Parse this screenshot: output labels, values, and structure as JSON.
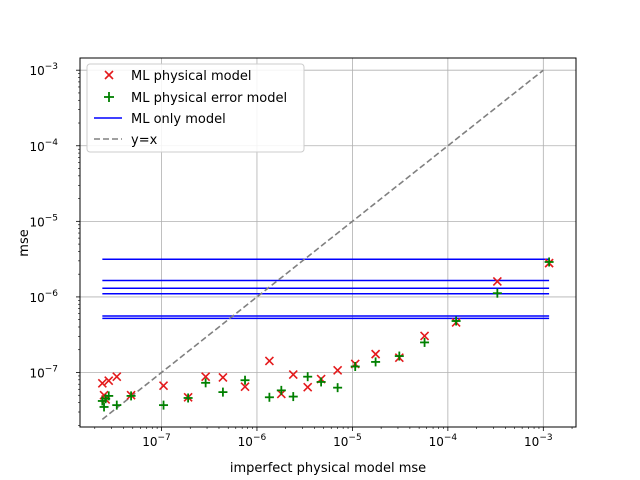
{
  "chart_data": {
    "type": "scatter",
    "title": "",
    "xlabel": "imperfect physical model mse",
    "ylabel": "mse",
    "xscale": "log",
    "yscale": "log",
    "xlim": [
      1.4e-08,
      0.0022
    ],
    "ylim": [
      1.9e-08,
      0.00145
    ],
    "grid": true,
    "legend_position": "top-left",
    "x_ticks": [
      {
        "value": 1e-07,
        "base": "10",
        "exp": "−7"
      },
      {
        "value": 1e-06,
        "base": "10",
        "exp": "−6"
      },
      {
        "value": 1e-05,
        "base": "10",
        "exp": "−5"
      },
      {
        "value": 0.0001,
        "base": "10",
        "exp": "−4"
      },
      {
        "value": 0.001,
        "base": "10",
        "exp": "−3"
      }
    ],
    "y_ticks": [
      {
        "value": 1e-07,
        "base": "10",
        "exp": "−7"
      },
      {
        "value": 1e-06,
        "base": "10",
        "exp": "−6"
      },
      {
        "value": 1e-05,
        "base": "10",
        "exp": "−5"
      },
      {
        "value": 0.0001,
        "base": "10",
        "exp": "−4"
      },
      {
        "value": 0.001,
        "base": "10",
        "exp": "−3"
      }
    ],
    "series": [
      {
        "name": "ML physical model",
        "marker": "x",
        "color": "#e41a1c",
        "points": [
          [
            2.4e-08,
            7.2e-08
          ],
          [
            2.5e-08,
            5e-08
          ],
          [
            2.6e-08,
            4.4e-08
          ],
          [
            2.8e-08,
            7.8e-08
          ],
          [
            3.4e-08,
            8.8e-08
          ],
          [
            4.8e-08,
            5e-08
          ],
          [
            1.05e-07,
            6.7e-08
          ],
          [
            1.9e-07,
            4.7e-08
          ],
          [
            2.9e-07,
            8.8e-08
          ],
          [
            4.4e-07,
            8.6e-08
          ],
          [
            7.5e-07,
            6.5e-08
          ],
          [
            1.35e-06,
            1.42e-07
          ],
          [
            1.8e-06,
            5.2e-08
          ],
          [
            2.4e-06,
            9.4e-08
          ],
          [
            3.4e-06,
            6.4e-08
          ],
          [
            4.7e-06,
            8.2e-08
          ],
          [
            7e-06,
            1.07e-07
          ],
          [
            1.07e-05,
            1.3e-07
          ],
          [
            1.75e-05,
            1.75e-07
          ],
          [
            3.1e-05,
            1.57e-07
          ],
          [
            5.7e-05,
            3.05e-07
          ],
          [
            0.000122,
            4.6e-07
          ],
          [
            0.00033,
            1.6e-06
          ],
          [
            0.00115,
            2.8e-06
          ]
        ]
      },
      {
        "name": "ML physical error model",
        "marker": "+",
        "color": "#008000",
        "points": [
          [
            2.4e-08,
            4.2e-08
          ],
          [
            2.5e-08,
            3.5e-08
          ],
          [
            2.6e-08,
            4.5e-08
          ],
          [
            2.8e-08,
            4.9e-08
          ],
          [
            3.4e-08,
            3.7e-08
          ],
          [
            4.8e-08,
            4.9e-08
          ],
          [
            1.05e-07,
            3.7e-08
          ],
          [
            1.9e-07,
            4.6e-08
          ],
          [
            2.9e-07,
            7.3e-08
          ],
          [
            4.4e-07,
            5.5e-08
          ],
          [
            7.5e-07,
            7.9e-08
          ],
          [
            1.35e-06,
            4.7e-08
          ],
          [
            1.8e-06,
            5.8e-08
          ],
          [
            2.4e-06,
            4.8e-08
          ],
          [
            3.4e-06,
            8.8e-08
          ],
          [
            4.7e-06,
            7.5e-08
          ],
          [
            7e-06,
            6.3e-08
          ],
          [
            1.07e-05,
            1.2e-07
          ],
          [
            1.75e-05,
            1.38e-07
          ],
          [
            3.1e-05,
            1.65e-07
          ],
          [
            5.7e-05,
            2.5e-07
          ],
          [
            0.000122,
            4.8e-07
          ],
          [
            0.00033,
            1.12e-06
          ],
          [
            0.00115,
            2.9e-06
          ]
        ]
      },
      {
        "name": "ML only model",
        "style": "hline",
        "color": "#0000ff",
        "x_range": [
          2.4e-08,
          0.00115
        ],
        "y_values": [
          3.15e-06,
          1.65e-06,
          1.3e-06,
          1.1e-06,
          5.6e-07,
          5.2e-07
        ]
      },
      {
        "name": "y=x",
        "style": "dashed",
        "color": "#808080",
        "x_range": [
          2.4e-08,
          0.001
        ]
      }
    ]
  }
}
